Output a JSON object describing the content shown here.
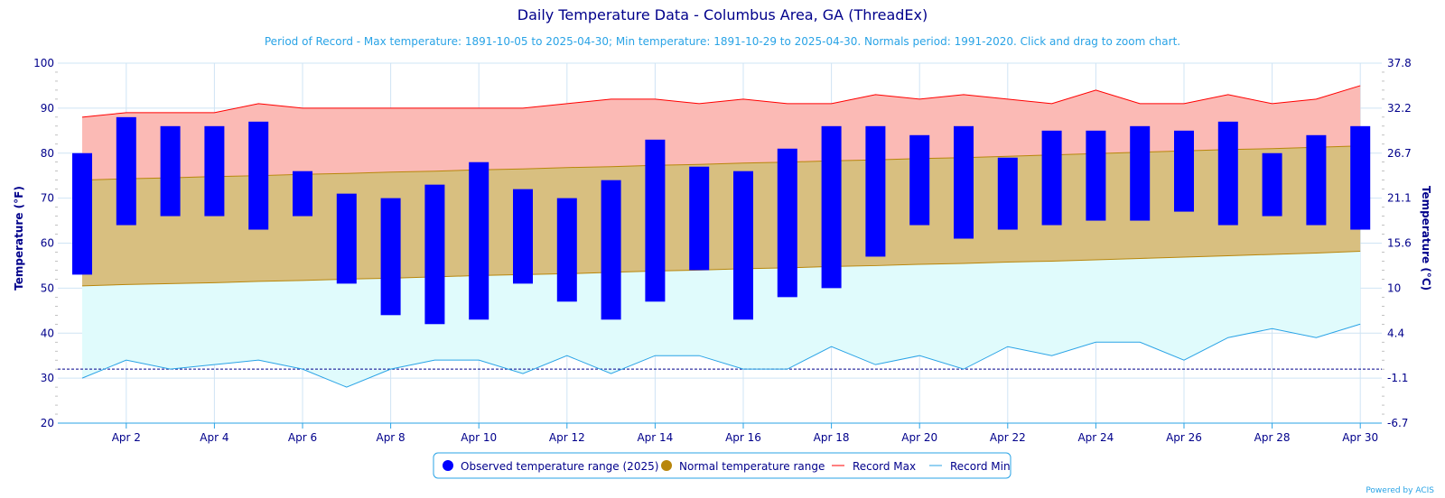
{
  "chart_data": {
    "type": "bar",
    "title": "Daily Temperature Data - Columbus Area, GA (ThreadEx)",
    "subtitle": "Period of Record - Max temperature: 1891-10-05 to 2025-04-30; Min temperature: 1891-10-29 to 2025-04-30. Normals period: 1991-2020. Click and drag to zoom chart.",
    "ylabel": "Temperature (°F)",
    "y2label": "Temperature (°C)",
    "ylim": [
      20,
      100
    ],
    "yticks": [
      20,
      30,
      40,
      50,
      60,
      70,
      80,
      90,
      100
    ],
    "y2ticks": [
      "-6.7",
      "-1.1",
      "4.4",
      "10",
      "15.6",
      "21.1",
      "26.7",
      "32.2",
      "37.8"
    ],
    "xlabels": [
      "Apr 2",
      "Apr 4",
      "Apr 6",
      "Apr 8",
      "Apr 10",
      "Apr 12",
      "Apr 14",
      "Apr 16",
      "Apr 18",
      "Apr 20",
      "Apr 22",
      "Apr 24",
      "Apr 26",
      "Apr 28",
      "Apr 30"
    ],
    "freezing_line": 32,
    "days": [
      1,
      2,
      3,
      4,
      5,
      6,
      7,
      8,
      9,
      10,
      11,
      12,
      13,
      14,
      15,
      16,
      17,
      18,
      19,
      20,
      21,
      22,
      23,
      24,
      25,
      26,
      27,
      28,
      29,
      30
    ],
    "series": [
      {
        "name": "Observed temperature range (2025)",
        "color": "#0000ff",
        "high": [
          80,
          88,
          86,
          86,
          87,
          76,
          71,
          70,
          73,
          78,
          72,
          70,
          74,
          83,
          77,
          76,
          81,
          86,
          86,
          84,
          86,
          79,
          85,
          85,
          86,
          85,
          87,
          80,
          84,
          86
        ],
        "low": [
          53,
          64,
          66,
          66,
          63,
          66,
          51,
          44,
          42,
          43,
          51,
          47,
          43,
          47,
          54,
          43,
          48,
          50,
          57,
          64,
          61,
          63,
          64,
          65,
          65,
          67,
          64,
          66,
          64,
          63
        ]
      },
      {
        "name": "Normal temperature range",
        "color": "#b8860b",
        "high": [
          74,
          74.3,
          74.5,
          74.8,
          75,
          75.3,
          75.5,
          75.8,
          76,
          76.3,
          76.5,
          76.8,
          77,
          77.3,
          77.5,
          77.8,
          78,
          78.3,
          78.5,
          78.8,
          79,
          79.3,
          79.6,
          79.9,
          80.2,
          80.5,
          80.8,
          81,
          81.3,
          81.6
        ],
        "low": [
          50.5,
          50.8,
          51,
          51.2,
          51.5,
          51.7,
          52,
          52.2,
          52.5,
          52.8,
          53,
          53.2,
          53.5,
          53.8,
          54,
          54.3,
          54.5,
          54.8,
          55,
          55.3,
          55.5,
          55.8,
          56,
          56.3,
          56.6,
          56.9,
          57.2,
          57.5,
          57.8,
          58.2
        ]
      },
      {
        "name": "Record Max",
        "color": "#ff0000",
        "values": [
          88,
          89,
          89,
          89,
          91,
          90,
          90,
          90,
          90,
          90,
          90,
          91,
          92,
          92,
          91,
          92,
          91,
          91,
          93,
          92,
          93,
          92,
          91,
          94,
          91,
          91,
          93,
          91,
          92,
          95
        ]
      },
      {
        "name": "Record Min",
        "color": "#29a3e6",
        "values": [
          30,
          34,
          32,
          33,
          34,
          32,
          28,
          32,
          34,
          34,
          31,
          35,
          31,
          35,
          35,
          32,
          32,
          37,
          33,
          35,
          32,
          37,
          35,
          38,
          38,
          34,
          39,
          41,
          39,
          42
        ]
      }
    ],
    "legend_position": "bottom-center"
  },
  "credit": "Powered by ACIS"
}
